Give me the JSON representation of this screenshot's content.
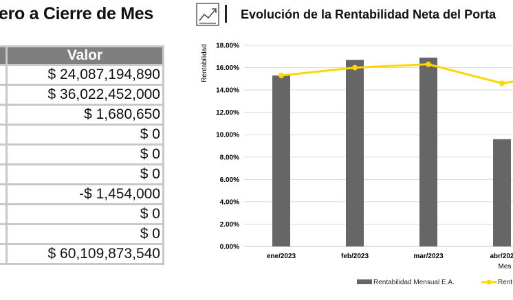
{
  "summary": {
    "title": "ero a Cierre de Mes",
    "value_header": "Valor",
    "values": [
      "$ 24,087,194,890",
      "$ 36,022,452,000",
      "$ 1,680,650",
      "$ 0",
      "$ 0",
      "$ 0",
      "-$ 1,454,000",
      "$ 0",
      "$ 0",
      "$ 60,109,873,540"
    ]
  },
  "chart_header": {
    "icon": "trend-chart-icon",
    "title": "Evolución de la Rentabilidad Neta del Porta"
  },
  "chart_data": {
    "type": "bar",
    "title": "Evolución de la Rentabilidad Neta del Porta",
    "categories": [
      "ene/2023",
      "feb/2023",
      "mar/2023",
      "abr/202"
    ],
    "series": [
      {
        "name": "Rentabilidad Mensual E.A.",
        "type": "bar",
        "color": "#666666",
        "values": [
          15.3,
          16.7,
          16.9,
          9.6
        ]
      },
      {
        "name": "Rent",
        "type": "line",
        "color": "#ffd700",
        "values": [
          15.3,
          16.0,
          16.3,
          14.6
        ]
      }
    ],
    "ylabel": "Rentabilidad",
    "xlabel": "Mes",
    "ylim": [
      0,
      18
    ],
    "yticks": [
      "0.00%",
      "2.00%",
      "4.00%",
      "6.00%",
      "8.00%",
      "10.00%",
      "12.00%",
      "14.00%",
      "16.00%",
      "18.00%"
    ],
    "grid": true,
    "legend": "bottom"
  }
}
